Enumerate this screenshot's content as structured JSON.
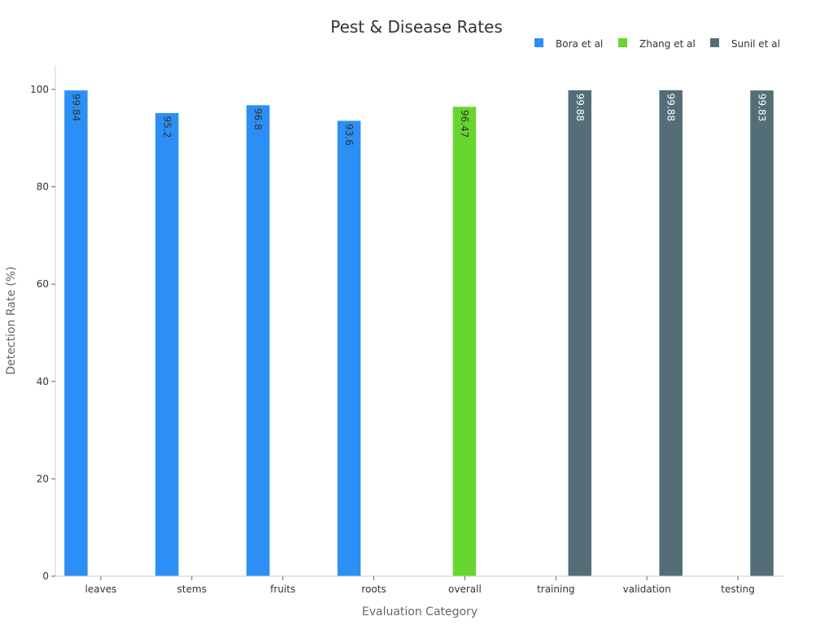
{
  "chart_data": {
    "type": "bar",
    "title": "Pest & Disease Rates",
    "xlabel": "Evaluation Category",
    "ylabel": "Detection Rate (%)",
    "categories": [
      "leaves",
      "stems",
      "fruits",
      "roots",
      "overall",
      "training",
      "validation",
      "testing"
    ],
    "ylim": [
      0,
      105
    ],
    "yticks": [
      0,
      20,
      40,
      60,
      80,
      100
    ],
    "legend_position": "top-right",
    "grid": false,
    "series": [
      {
        "name": "Bora et al",
        "color": "#2b8ff5",
        "label_color": "#333333",
        "values": [
          99.84,
          95.2,
          96.8,
          93.6,
          null,
          null,
          null,
          null
        ]
      },
      {
        "name": "Zhang et al",
        "color": "#66d62e",
        "label_color": "#333333",
        "values": [
          null,
          null,
          null,
          null,
          96.47,
          null,
          null,
          null
        ]
      },
      {
        "name": "Sunil et al",
        "color": "#546e78",
        "label_color": "#ffffff",
        "values": [
          null,
          null,
          null,
          null,
          null,
          99.88,
          99.88,
          99.83
        ]
      }
    ]
  }
}
